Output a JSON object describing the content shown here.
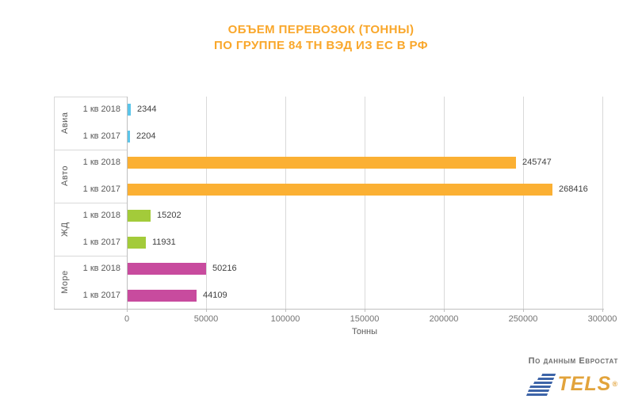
{
  "title": {
    "line1": "ОБЪЕМ ПЕРЕВОЗОК (ТОННЫ)",
    "line2": "ПО ГРУППЕ 84 ТН ВЭД ИЗ ЕС В РФ"
  },
  "chart_data": {
    "type": "bar",
    "orientation": "horizontal",
    "title": "ОБЪЕМ ПЕРЕВОЗОК (ТОННЫ) ПО ГРУППЕ 84 ТН ВЭД ИЗ ЕС В РФ",
    "xlabel": "Тонны",
    "xlim": [
      0,
      300000
    ],
    "x_ticks": [
      "0",
      "50000",
      "100000",
      "150000",
      "200000",
      "250000",
      "300000"
    ],
    "grid": true,
    "legend": false,
    "groups": [
      {
        "name": "Авиа",
        "color": "#5bc5ea",
        "bars": [
          {
            "label": "1 кв 2018",
            "value": 2344
          },
          {
            "label": "1 кв 2017",
            "value": 2204
          }
        ]
      },
      {
        "name": "Авто",
        "color": "#fbb033",
        "bars": [
          {
            "label": "1 кв 2018",
            "value": 245747
          },
          {
            "label": "1 кв 2017",
            "value": 268416
          }
        ]
      },
      {
        "name": "ЖД",
        "color": "#a3cb3a",
        "bars": [
          {
            "label": "1 кв 2018",
            "value": 15202
          },
          {
            "label": "1 кв 2017",
            "value": 11931
          }
        ]
      },
      {
        "name": "Море",
        "color": "#c84b9e",
        "bars": [
          {
            "label": "1 кв 2018",
            "value": 50216
          },
          {
            "label": "1 кв 2017",
            "value": 44109
          }
        ]
      }
    ]
  },
  "footer": {
    "source_text": "По данным Евростат",
    "logo_text": "TELS",
    "logo_reg_mark": "®"
  },
  "colors": {
    "title": "#f9a72b",
    "logo_blue": "#3d64a8",
    "logo_orange": "#e2a33b"
  }
}
